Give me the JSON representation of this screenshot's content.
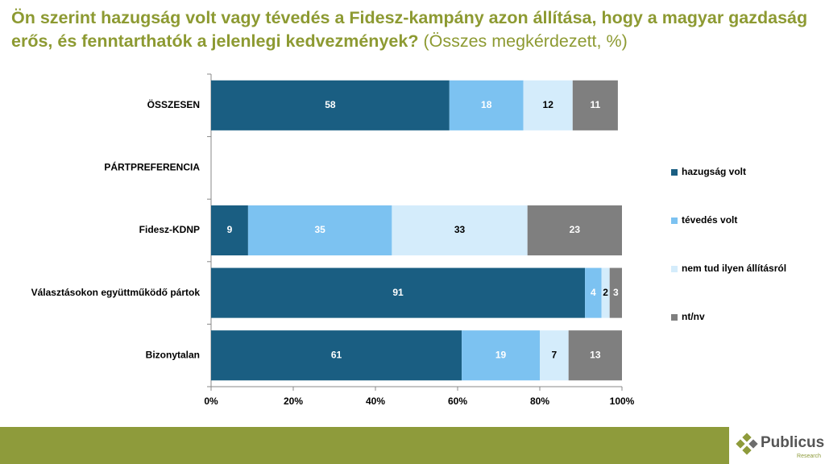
{
  "chart_data": {
    "type": "stacked-bar-horizontal",
    "title": "Ön szerint hazugság volt vagy tévedés a Fidesz-kampány azon állítása, hogy a magyar gazdaság erős, és fenntarthatók a jelenlegi kedvezmények?",
    "subtitle": "(Összes megkérdezett, %)",
    "categories": [
      "ÖSSZESEN",
      "PÁRTPREFERENCIA",
      "Fidesz-KDNP",
      "Választásokon együttműködő pártok",
      "Bizonytalan"
    ],
    "series": [
      {
        "name": "hazugság volt",
        "color": "#1a5e82",
        "values": [
          58,
          null,
          9,
          91,
          61
        ]
      },
      {
        "name": "tévedés volt",
        "color": "#7cc2f1",
        "values": [
          18,
          null,
          35,
          4,
          19
        ]
      },
      {
        "name": "nem tud ilyen állításról",
        "color": "#d4ecfb",
        "values": [
          12,
          null,
          33,
          2,
          7
        ]
      },
      {
        "name": "nt/nv",
        "color": "#7f7f7f",
        "values": [
          11,
          null,
          23,
          3,
          13
        ]
      }
    ],
    "xlim": [
      0,
      100
    ],
    "xticks": [
      {
        "value": 0,
        "label": "0%"
      },
      {
        "value": 20,
        "label": "20%"
      },
      {
        "value": 40,
        "label": "40%"
      },
      {
        "value": 60,
        "label": "60%"
      },
      {
        "value": 80,
        "label": "80%"
      },
      {
        "value": 100,
        "label": "100%"
      }
    ],
    "legend": "right"
  },
  "logo": {
    "name": "Publicus",
    "tagline": "Research"
  }
}
